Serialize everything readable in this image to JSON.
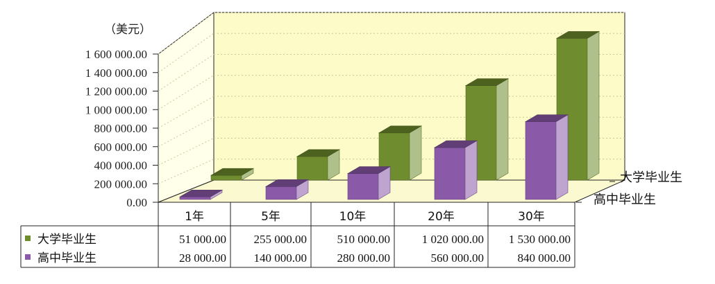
{
  "chart_data": {
    "type": "bar",
    "unit_label": "（美元）",
    "categories": [
      "1年",
      "5年",
      "10年",
      "20年",
      "30年"
    ],
    "y_ticks": [
      "0.00",
      "200 000.00",
      "400 000.00",
      "600 000.00",
      "800 000.00",
      "1 000 000.00",
      "1 200 000.00",
      "1 400 000.00",
      "1 600 000.00"
    ],
    "ylim": [
      0,
      1600000
    ],
    "grid": true,
    "series": [
      {
        "name": "大学毕业生",
        "color": "#6f8c2e",
        "values": [
          51000,
          255000,
          510000,
          1020000,
          1530000
        ],
        "value_labels": [
          "51 000.00",
          "255 000.00",
          "510 000.00",
          "1 020 000.00",
          "1 530 000.00"
        ]
      },
      {
        "name": "高中毕业生",
        "color": "#8a5aa8",
        "values": [
          28000,
          140000,
          280000,
          560000,
          840000
        ],
        "value_labels": [
          "28 000.00",
          "140 000.00",
          "280 000.00",
          "560 000.00",
          "840 000.00"
        ]
      }
    ]
  }
}
